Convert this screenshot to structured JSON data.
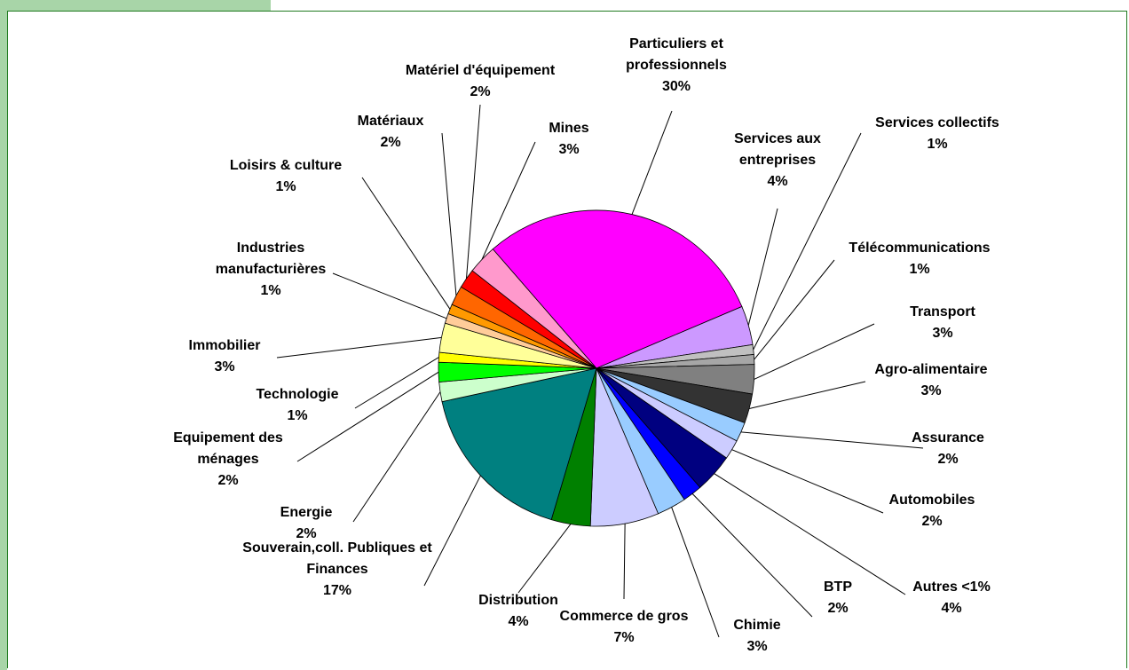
{
  "chart_data": {
    "type": "pie",
    "categories": [
      "Particuliers et professionnels",
      "Services aux entreprises",
      "Services collectifs",
      "Télécommunications",
      "Transport",
      "Agro-alimentaire",
      "Assurance",
      "Automobiles",
      "Autres <1%",
      "BTP",
      "Chimie",
      "Commerce de gros",
      "Distribution",
      "Souverain,coll. Publiques et Finances",
      "Energie",
      "Equipement des ménages",
      "Technologie",
      "Immobilier",
      "Industries manufacturières",
      "Loisirs & culture",
      "Matériaux",
      "Matériel d'équipement",
      "Mines"
    ],
    "values": [
      30,
      4,
      1,
      1,
      3,
      3,
      2,
      2,
      4,
      2,
      3,
      7,
      4,
      17,
      2,
      2,
      1,
      3,
      1,
      1,
      2,
      2,
      3
    ],
    "value_labels": [
      "30%",
      "4%",
      "1%",
      "1%",
      "3%",
      "3%",
      "2%",
      "2%",
      "4%",
      "2%",
      "3%",
      "7%",
      "4%",
      "17%",
      "2%",
      "2%",
      "1%",
      "3%",
      "1%",
      "1%",
      "2%",
      "2%",
      "3%"
    ],
    "colors": [
      "#ff00ff",
      "#cc99ff",
      "#c0c0c0",
      "#a6a6a6",
      "#808080",
      "#333333",
      "#99ccff",
      "#ccccff",
      "#000080",
      "#0000ff",
      "#99ccff",
      "#ccccff",
      "#008000",
      "#008080",
      "#ccffcc",
      "#00ff00",
      "#ffff00",
      "#ffff99",
      "#ffcc99",
      "#ff9900",
      "#ff6600",
      "#ff0000",
      "#ff99cc"
    ]
  }
}
